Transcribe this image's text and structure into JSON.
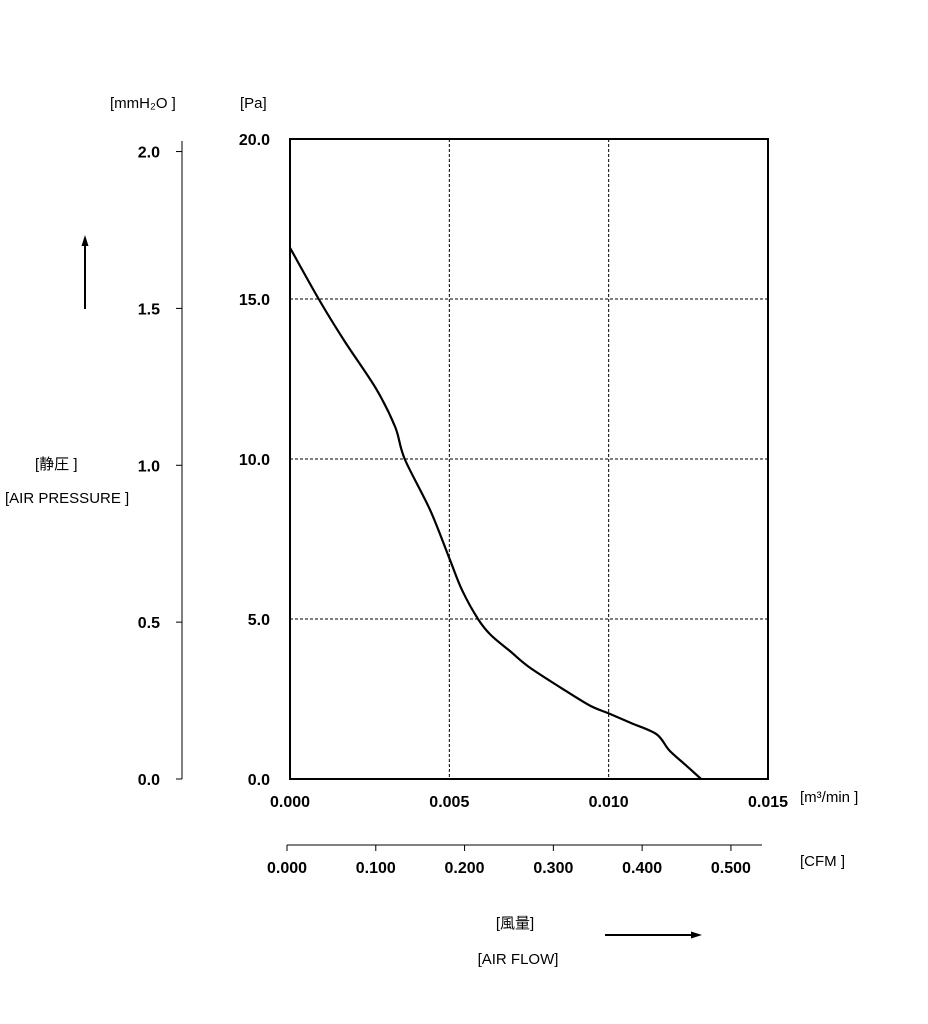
{
  "chart_data": {
    "type": "line",
    "x": [
      0,
      0.0009,
      0.0017,
      0.0027,
      0.0033,
      0.0036,
      0.0044,
      0.005,
      0.0054,
      0.0059,
      0.0063,
      0.0069,
      0.0075,
      0.0085,
      0.0094,
      0.01,
      0.0107,
      0.0115,
      0.0119,
      0.0124,
      0.0129
    ],
    "series": [
      {
        "values": [
          16.6,
          15.0,
          13.7,
          12.2,
          11.0,
          10.0,
          8.4,
          6.9,
          5.9,
          5.0,
          4.5,
          4.0,
          3.5,
          2.85,
          2.3,
          2.05,
          1.75,
          1.4,
          0.9,
          0.45,
          0.0
        ]
      }
    ],
    "x_axis": {
      "label": "[m³/min ]",
      "range": [
        0,
        0.015
      ],
      "ticks": [
        "0.000",
        "0.005",
        "0.010",
        "0.015"
      ]
    },
    "y_axis": {
      "label": "[Pa]",
      "range": [
        0,
        20
      ],
      "ticks": [
        "0.0",
        "5.0",
        "10.0",
        "15.0",
        "20.0"
      ]
    },
    "secondary_y_axis": {
      "label": "[mmH₂O ]",
      "range": [
        0,
        2.04
      ],
      "ticks": [
        "0.0",
        "0.5",
        "1.0",
        "1.5",
        "2.0"
      ]
    },
    "secondary_x_axis": {
      "label": "[CFM ]",
      "range": [
        0,
        0.535
      ],
      "ticks": [
        "0.000",
        "0.100",
        "0.200",
        "0.300",
        "0.400",
        "0.500"
      ]
    },
    "y_title": [
      "[静圧 ]",
      "[AIR PRESSURE ]"
    ],
    "x_title": [
      "[風量]",
      "[AIR FLOW]"
    ],
    "grid": true,
    "grid_style": "dashed",
    "line_color": "#000000"
  }
}
